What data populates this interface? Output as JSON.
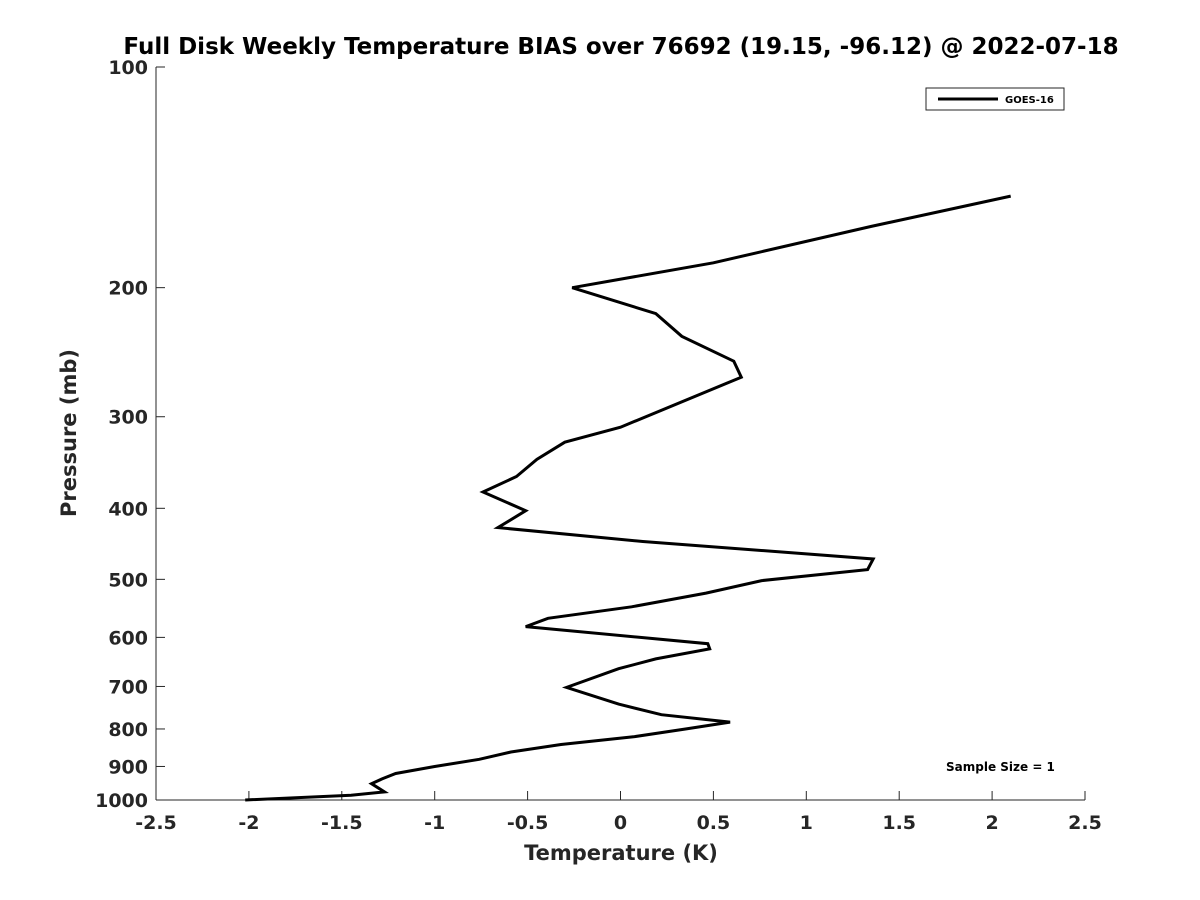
{
  "chart_data": {
    "type": "line",
    "title": "Full Disk Weekly Temperature BIAS over 76692 (19.15, -96.12) @ 2022-07-18",
    "xlabel": "Temperature (K)",
    "ylabel": "Pressure (mb)",
    "xlim": [
      -2.5,
      2.5
    ],
    "ylim": [
      100,
      1000
    ],
    "y_scale": "log",
    "y_reversed": true,
    "grid": false,
    "legend_position": "top-right",
    "x_ticks": [
      "-2.5",
      "-2",
      "-1.5",
      "-1",
      "-0.5",
      "0",
      "0.5",
      "1",
      "1.5",
      "2",
      "2.5"
    ],
    "y_ticks": [
      "100",
      "200",
      "300",
      "400",
      "500",
      "600",
      "700",
      "800",
      "900",
      "1000"
    ],
    "annotation": "Sample Size = 1",
    "series": [
      {
        "name": "GOES-16",
        "color": "#000000",
        "points": [
          {
            "x": 2.1,
            "p": 150
          },
          {
            "x": 1.35,
            "p": 165
          },
          {
            "x": 0.5,
            "p": 185
          },
          {
            "x": -0.26,
            "p": 200
          },
          {
            "x": 0.19,
            "p": 217
          },
          {
            "x": 0.33,
            "p": 233
          },
          {
            "x": 0.61,
            "p": 252
          },
          {
            "x": 0.65,
            "p": 265
          },
          {
            "x": 0.0,
            "p": 310
          },
          {
            "x": -0.3,
            "p": 325
          },
          {
            "x": -0.45,
            "p": 343
          },
          {
            "x": -0.56,
            "p": 362
          },
          {
            "x": -0.74,
            "p": 380
          },
          {
            "x": -0.51,
            "p": 403
          },
          {
            "x": -0.66,
            "p": 425
          },
          {
            "x": 0.12,
            "p": 444
          },
          {
            "x": 1.36,
            "p": 469
          },
          {
            "x": 1.33,
            "p": 485
          },
          {
            "x": 0.76,
            "p": 502
          },
          {
            "x": 0.46,
            "p": 522
          },
          {
            "x": 0.06,
            "p": 545
          },
          {
            "x": -0.39,
            "p": 565
          },
          {
            "x": -0.51,
            "p": 580
          },
          {
            "x": 0.47,
            "p": 612
          },
          {
            "x": 0.48,
            "p": 622
          },
          {
            "x": 0.19,
            "p": 642
          },
          {
            "x": -0.01,
            "p": 662
          },
          {
            "x": -0.29,
            "p": 702
          },
          {
            "x": -0.01,
            "p": 740
          },
          {
            "x": 0.22,
            "p": 765
          },
          {
            "x": 0.59,
            "p": 783
          },
          {
            "x": 0.35,
            "p": 800
          },
          {
            "x": 0.07,
            "p": 820
          },
          {
            "x": -0.32,
            "p": 840
          },
          {
            "x": -0.59,
            "p": 860
          },
          {
            "x": -0.76,
            "p": 880
          },
          {
            "x": -1.0,
            "p": 900
          },
          {
            "x": -1.21,
            "p": 920
          },
          {
            "x": -1.28,
            "p": 935
          },
          {
            "x": -1.34,
            "p": 950
          },
          {
            "x": -1.27,
            "p": 975
          },
          {
            "x": -1.45,
            "p": 985
          },
          {
            "x": -2.02,
            "p": 1000
          }
        ]
      }
    ]
  }
}
